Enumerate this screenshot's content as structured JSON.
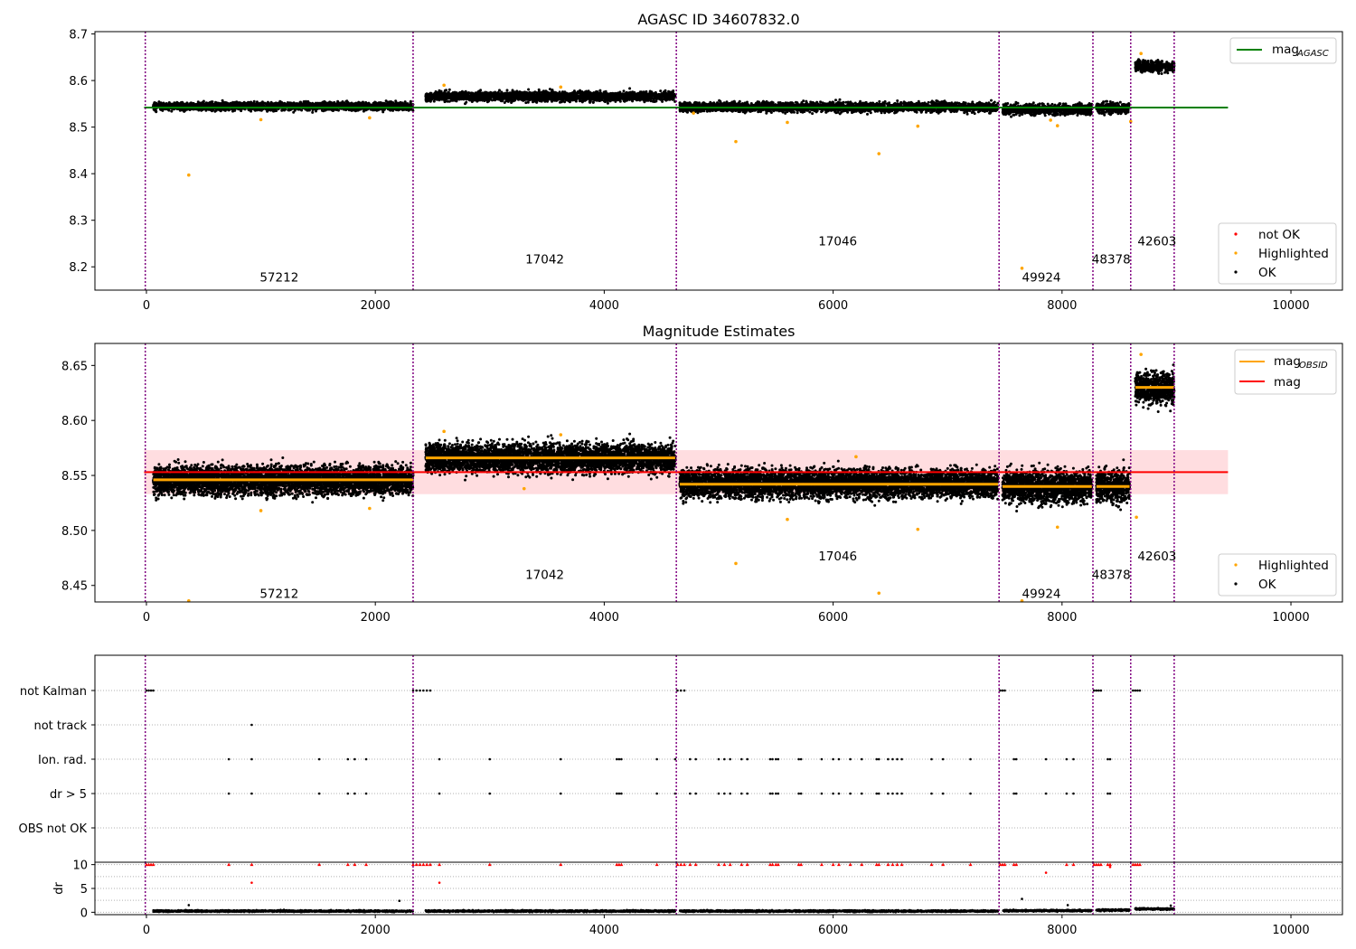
{
  "colors": {
    "agasc": "#008000",
    "obsid_mag": "#ffa500",
    "mag": "#ff0000",
    "band": "#ffdde0",
    "boundary": "#800080",
    "ok": "#000000",
    "highlighted": "#ffa500",
    "not_ok": "#ff0000",
    "grid": "#b0b0b0"
  },
  "chart_data": [
    {
      "type": "scatter",
      "title": "AGASC ID 34607832.0",
      "xlim": [
        -450,
        10450
      ],
      "ylim": [
        8.15,
        8.705
      ],
      "x_ticks": [
        0,
        2000,
        4000,
        6000,
        8000,
        10000
      ],
      "y_ticks": [
        8.2,
        8.3,
        8.4,
        8.5,
        8.6,
        8.7
      ],
      "series": [
        {
          "name": "not OK",
          "values": []
        },
        {
          "name": "Highlighted",
          "values": [
            [
              370,
              8.397
            ],
            [
              5150,
              8.469
            ],
            [
              6400,
              8.443
            ],
            [
              7650,
              8.197
            ],
            [
              6740,
              8.502
            ],
            [
              7960,
              8.503
            ],
            [
              1000,
              8.516
            ],
            [
              1950,
              8.52
            ],
            [
              4780,
              8.53
            ],
            [
              5600,
              8.51
            ],
            [
              3620,
              8.586
            ],
            [
              2600,
              8.59
            ],
            [
              8690,
              8.658
            ],
            [
              8600,
              8.512
            ],
            [
              7900,
              8.515
            ]
          ]
        },
        {
          "name": "OK",
          "values": []
        }
      ],
      "hlines": [
        {
          "name": "mag_AGASC",
          "y": 8.542,
          "x_range": [
            -20,
            9450
          ]
        }
      ],
      "intervals": [
        {
          "x": [
            60,
            2330
          ],
          "mean": 8.545,
          "std": 0.006
        },
        {
          "x": [
            2440,
            4620
          ],
          "mean": 8.566,
          "std": 0.007
        },
        {
          "x": [
            4660,
            7440
          ],
          "mean": 8.543,
          "std": 0.007
        },
        {
          "x": [
            7480,
            8260
          ],
          "mean": 8.538,
          "std": 0.008
        },
        {
          "x": [
            8300,
            8590
          ],
          "mean": 8.541,
          "std": 0.008
        },
        {
          "x": [
            8640,
            8980
          ],
          "mean": 8.63,
          "std": 0.008
        }
      ],
      "boundaries": [
        -10,
        2330,
        4630,
        7450,
        8270,
        8600,
        8980
      ],
      "annotations": [
        {
          "text": "57212",
          "x": 1160,
          "y": 8.178
        },
        {
          "text": "17042",
          "x": 3480,
          "y": 8.217
        },
        {
          "text": "17046",
          "x": 6040,
          "y": 8.256
        },
        {
          "text": "49924",
          "x": 7820,
          "y": 8.178
        },
        {
          "text": "48378",
          "x": 8430,
          "y": 8.217
        },
        {
          "text": "42603",
          "x": 8830,
          "y": 8.256
        }
      ]
    },
    {
      "type": "scatter",
      "title": "Magnitude Estimates",
      "xlim": [
        -450,
        10450
      ],
      "ylim": [
        8.435,
        8.67
      ],
      "x_ticks": [
        0,
        2000,
        4000,
        6000,
        8000,
        10000
      ],
      "y_ticks": [
        8.45,
        8.5,
        8.55,
        8.6,
        8.65
      ],
      "series": [
        {
          "name": "Highlighted",
          "values": [
            [
              370,
              8.436
            ],
            [
              1000,
              8.518
            ],
            [
              1950,
              8.52
            ],
            [
              3300,
              8.538
            ],
            [
              5150,
              8.47
            ],
            [
              5600,
              8.51
            ],
            [
              6400,
              8.443
            ],
            [
              6740,
              8.501
            ],
            [
              7650,
              8.436
            ],
            [
              7960,
              8.503
            ],
            [
              8650,
              8.512
            ],
            [
              3620,
              8.587
            ],
            [
              2600,
              8.59
            ],
            [
              6200,
              8.567
            ],
            [
              8690,
              8.66
            ]
          ]
        },
        {
          "name": "OK",
          "values": []
        }
      ],
      "hlines": [
        {
          "name": "mag",
          "y": 8.553,
          "band": [
            8.533,
            8.573
          ],
          "x_range": [
            -20,
            9450
          ]
        }
      ],
      "obsid_segments": [
        {
          "x": [
            60,
            2330
          ],
          "y": 8.546
        },
        {
          "x": [
            2440,
            4620
          ],
          "y": 8.566
        },
        {
          "x": [
            4660,
            7440
          ],
          "y": 8.542
        },
        {
          "x": [
            7480,
            8260
          ],
          "y": 8.54
        },
        {
          "x": [
            8300,
            8590
          ],
          "y": 8.54
        },
        {
          "x": [
            8640,
            8980
          ],
          "y": 8.63
        }
      ],
      "intervals": [
        {
          "x": [
            60,
            2330
          ],
          "mean": 8.546,
          "std": 0.009
        },
        {
          "x": [
            2440,
            4620
          ],
          "mean": 8.566,
          "std": 0.009
        },
        {
          "x": [
            4660,
            7440
          ],
          "mean": 8.543,
          "std": 0.009
        },
        {
          "x": [
            7480,
            8260
          ],
          "mean": 8.54,
          "std": 0.01
        },
        {
          "x": [
            8300,
            8590
          ],
          "mean": 8.54,
          "std": 0.01
        },
        {
          "x": [
            8640,
            8980
          ],
          "mean": 8.63,
          "std": 0.01
        }
      ],
      "boundaries": [
        -10,
        2330,
        4630,
        7450,
        8270,
        8600,
        8980
      ],
      "annotations": [
        {
          "text": "57212",
          "x": 1160,
          "y": 8.443
        },
        {
          "text": "17042",
          "x": 3480,
          "y": 8.46
        },
        {
          "text": "17046",
          "x": 6040,
          "y": 8.477
        },
        {
          "text": "49924",
          "x": 7820,
          "y": 8.443
        },
        {
          "text": "48378",
          "x": 8430,
          "y": 8.46
        },
        {
          "text": "42603",
          "x": 8830,
          "y": 8.477
        }
      ]
    },
    {
      "type": "scatter",
      "title": "",
      "xlim": [
        -450,
        10450
      ],
      "categories": [
        "not Kalman",
        "not track",
        "Ion. rad.",
        "dr > 5",
        "OBS not OK"
      ],
      "rows": [
        {
          "label": "not Kalman",
          "x": [
            0,
            20,
            40,
            60,
            2330,
            2360,
            2390,
            2420,
            2450,
            2480,
            4640,
            4670,
            4700,
            7460,
            7480,
            7500,
            8280,
            8300,
            8320,
            8340,
            8620,
            8640,
            8660,
            8680
          ]
        },
        {
          "label": "not track",
          "x": [
            920
          ]
        },
        {
          "label": "Ion. rad.",
          "x": [
            720,
            920,
            1510,
            1760,
            1820,
            1920,
            2560,
            3000,
            3620,
            4110,
            4130,
            4150,
            4460,
            4620,
            4750,
            4800,
            5000,
            5050,
            5100,
            5200,
            5250,
            5450,
            5470,
            5500,
            5520,
            5700,
            5720,
            5900,
            6000,
            6050,
            6150,
            6250,
            6380,
            6400,
            6480,
            6520,
            6560,
            6600,
            6860,
            6960,
            7200,
            7580,
            7600,
            7860,
            8040,
            8100,
            8400,
            8420
          ]
        },
        {
          "label": "dr > 5",
          "x": [
            720,
            920,
            1510,
            1760,
            1820,
            1920,
            2560,
            3000,
            3620,
            4110,
            4130,
            4150,
            4460,
            4620,
            4750,
            4800,
            5000,
            5050,
            5100,
            5200,
            5250,
            5450,
            5470,
            5500,
            5520,
            5700,
            5720,
            5900,
            6000,
            6050,
            6150,
            6250,
            6380,
            6400,
            6480,
            6520,
            6560,
            6600,
            6860,
            6960,
            7200,
            7580,
            7600,
            7860,
            8040,
            8100,
            8400,
            8420
          ]
        },
        {
          "label": "OBS not OK",
          "x": []
        }
      ],
      "boundaries": [
        -10,
        2330,
        4630,
        7450,
        8270,
        8600,
        8980
      ]
    },
    {
      "type": "scatter",
      "title": "",
      "xlim": [
        -450,
        10450
      ],
      "ylim": [
        -0.5,
        10.5
      ],
      "ylabel": "dr",
      "x_ticks": [
        0,
        2000,
        4000,
        6000,
        8000,
        10000
      ],
      "y_ticks": [
        0,
        5,
        10
      ],
      "clip_value": 10,
      "high_dr_x": [
        0,
        20,
        40,
        60,
        720,
        920,
        1510,
        1760,
        1820,
        1920,
        2330,
        2360,
        2390,
        2420,
        2450,
        2480,
        2560,
        3000,
        3620,
        4110,
        4130,
        4150,
        4460,
        4640,
        4670,
        4700,
        4750,
        4800,
        5000,
        5050,
        5100,
        5200,
        5250,
        5450,
        5470,
        5500,
        5520,
        5700,
        5720,
        5900,
        6000,
        6050,
        6150,
        6250,
        6380,
        6400,
        6480,
        6520,
        6560,
        6600,
        6860,
        6960,
        7200,
        7460,
        7480,
        7500,
        7580,
        7600,
        8040,
        8100,
        8280,
        8300,
        8320,
        8340,
        8400,
        8420,
        8620,
        8640,
        8660,
        8680
      ],
      "mid_dr_points": [
        [
          920,
          6.2
        ],
        [
          2560,
          6.2
        ],
        [
          7860,
          8.3
        ],
        [
          8420,
          9.5
        ]
      ],
      "low_dr_points": [
        [
          370,
          1.5
        ],
        [
          2210,
          2.4
        ],
        [
          7650,
          2.8
        ],
        [
          8050,
          1.5
        ],
        [
          8950,
          1.4
        ]
      ],
      "intervals": [
        {
          "x": [
            60,
            2330
          ],
          "level": 0.25
        },
        {
          "x": [
            2440,
            4620
          ],
          "level": 0.25
        },
        {
          "x": [
            4660,
            7440
          ],
          "level": 0.25
        },
        {
          "x": [
            7480,
            8260
          ],
          "level": 0.35
        },
        {
          "x": [
            8300,
            8590
          ],
          "level": 0.45
        },
        {
          "x": [
            8640,
            8980
          ],
          "level": 0.7
        }
      ],
      "boundaries": [
        -10,
        2330,
        4630,
        7450,
        8270,
        8600,
        8980
      ]
    }
  ],
  "legends": {
    "top": {
      "mag_agasc": "mag",
      "mag_agasc_sub": "AGASC"
    },
    "top_markers": [
      "not OK",
      "Highlighted",
      "OK"
    ],
    "middle": {
      "mag_obsid": "mag",
      "mag_obsid_sub": "OBSID",
      "mag": "mag"
    },
    "middle_markers": [
      "Highlighted",
      "OK"
    ]
  }
}
